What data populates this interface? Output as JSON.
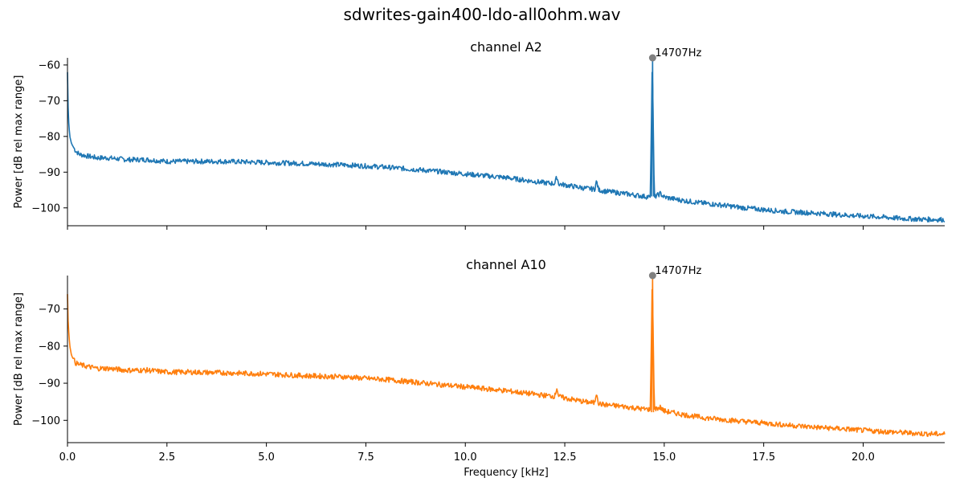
{
  "figure": {
    "title": "sdwrites-gain400-ldo-all0ohm.wav"
  },
  "chart_data": [
    {
      "type": "line",
      "title": "channel A2",
      "xlabel": "",
      "ylabel": "Power [dB rel max range]",
      "xlim": [
        0,
        22.05
      ],
      "ylim": [
        -105,
        -58
      ],
      "x_ticks": [
        "0.0",
        "2.5",
        "5.0",
        "7.5",
        "10.0",
        "12.5",
        "15.0",
        "17.5",
        "20.0"
      ],
      "y_ticks": [
        "−60",
        "−70",
        "−80",
        "−90",
        "−100"
      ],
      "x_tick_values": [
        0,
        2.5,
        5,
        7.5,
        10,
        12.5,
        15,
        17.5,
        20
      ],
      "y_tick_values": [
        -60,
        -70,
        -80,
        -90,
        -100
      ],
      "series": [
        {
          "color": "#1f77b4",
          "x": [
            0.0,
            0.01,
            0.03,
            0.06,
            0.1,
            0.15,
            0.2,
            0.3,
            0.5,
            0.75,
            1.0,
            1.5,
            2.0,
            2.5,
            3.0,
            4.0,
            5.0,
            6.0,
            7.0,
            7.5,
            8.0,
            9.0,
            10.0,
            11.0,
            12.0,
            12.25,
            12.3,
            12.35,
            12.5,
            13.0,
            13.25,
            13.3,
            13.35,
            13.5,
            14.0,
            14.5,
            14.65,
            14.7,
            14.75,
            14.9,
            15.0,
            15.5,
            16.0,
            16.5,
            17.0,
            17.5,
            18.0,
            18.5,
            19.0,
            19.5,
            20.0,
            20.5,
            21.0,
            21.5,
            22.05
          ],
          "y": [
            -62,
            -70,
            -76,
            -80,
            -82,
            -83,
            -84,
            -85,
            -85.5,
            -86,
            -86,
            -86.5,
            -86.5,
            -87,
            -87,
            -87,
            -87.3,
            -87.6,
            -88,
            -88.3,
            -88.6,
            -89.5,
            -90.5,
            -91.5,
            -93,
            -93.2,
            -91.3,
            -93.3,
            -93.6,
            -94.5,
            -94.8,
            -92.5,
            -95,
            -95.3,
            -96,
            -96.8,
            -97,
            -58,
            -97,
            -96,
            -97,
            -98,
            -98.7,
            -99.3,
            -100,
            -100.5,
            -101,
            -101.3,
            -101.6,
            -102,
            -102.3,
            -102.6,
            -103,
            -103.2,
            -103.3
          ]
        }
      ],
      "annotations": [
        {
          "x": 14.707,
          "y": -58,
          "text": "14707Hz",
          "marker_color": "#808080"
        }
      ]
    },
    {
      "type": "line",
      "title": "channel A10",
      "xlabel": "Frequency [kHz]",
      "ylabel": "Power [dB rel max range]",
      "xlim": [
        0,
        22.05
      ],
      "ylim": [
        -106,
        -61
      ],
      "x_ticks": [
        "0.0",
        "2.5",
        "5.0",
        "7.5",
        "10.0",
        "12.5",
        "15.0",
        "17.5",
        "20.0"
      ],
      "y_ticks": [
        "−70",
        "−80",
        "−90",
        "−100"
      ],
      "x_tick_values": [
        0,
        2.5,
        5,
        7.5,
        10,
        12.5,
        15,
        17.5,
        20
      ],
      "y_tick_values": [
        -70,
        -80,
        -90,
        -100
      ],
      "series": [
        {
          "color": "#ff7f0e",
          "x": [
            0.0,
            0.01,
            0.03,
            0.06,
            0.1,
            0.15,
            0.2,
            0.3,
            0.5,
            0.75,
            1.0,
            1.5,
            2.0,
            2.5,
            3.0,
            4.0,
            5.0,
            6.0,
            7.0,
            7.5,
            8.0,
            9.0,
            10.0,
            11.0,
            12.0,
            12.25,
            12.3,
            12.35,
            12.5,
            13.0,
            13.25,
            13.3,
            13.35,
            13.5,
            14.0,
            14.5,
            14.65,
            14.7,
            14.75,
            14.9,
            15.0,
            15.5,
            16.0,
            16.5,
            17.0,
            17.5,
            18.0,
            18.5,
            19.0,
            19.5,
            20.0,
            20.5,
            21.0,
            21.5,
            22.05
          ],
          "y": [
            -66,
            -72,
            -76,
            -80,
            -82.5,
            -83.5,
            -84.5,
            -85,
            -85.5,
            -86,
            -86,
            -86.5,
            -86.5,
            -87,
            -87,
            -87.2,
            -87.5,
            -88,
            -88.3,
            -88.7,
            -89,
            -90,
            -91,
            -92,
            -93.3,
            -93.5,
            -91.2,
            -93.6,
            -94,
            -95,
            -95.3,
            -92.3,
            -95.5,
            -95.8,
            -96.3,
            -97,
            -97,
            -61,
            -97,
            -96.5,
            -97.5,
            -98.5,
            -99.3,
            -99.8,
            -100.3,
            -100.7,
            -101.2,
            -101.6,
            -102,
            -102.3,
            -102.7,
            -103,
            -103.3,
            -103.6,
            -103.7
          ]
        }
      ],
      "annotations": [
        {
          "x": 14.707,
          "y": -61,
          "text": "14707Hz",
          "marker_color": "#808080"
        }
      ]
    }
  ]
}
